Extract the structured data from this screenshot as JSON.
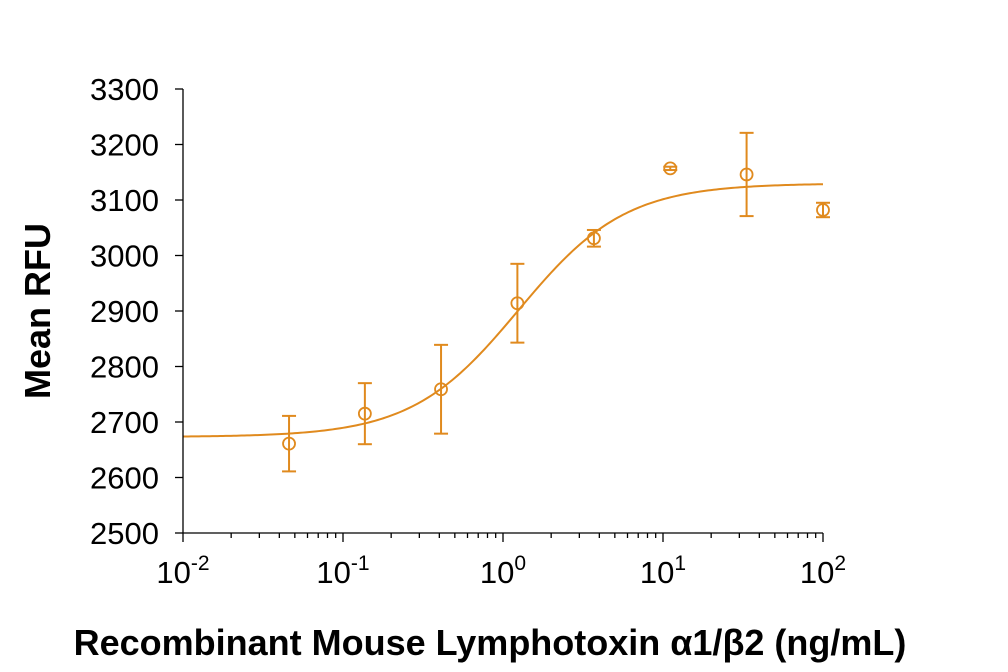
{
  "chart_data": {
    "type": "scatter",
    "xlabel": "Recombinant Mouse Lymphotoxin α1/β2 (ng/mL)",
    "ylabel": "Mean RFU",
    "x_scale": "log",
    "xlim": [
      0.01,
      100
    ],
    "ylim": [
      2500,
      3300
    ],
    "y_ticks": [
      2500,
      2600,
      2700,
      2800,
      2900,
      3000,
      3100,
      3200,
      3300
    ],
    "x_ticks": [
      {
        "base": "10",
        "exp": "-2",
        "value": 0.01
      },
      {
        "base": "10",
        "exp": "-1",
        "value": 0.1
      },
      {
        "base": "10",
        "exp": "0",
        "value": 1
      },
      {
        "base": "10",
        "exp": "1",
        "value": 10
      },
      {
        "base": "10",
        "exp": "2",
        "value": 100
      }
    ],
    "series": [
      {
        "color": "#E08A1E",
        "marker": "circle-open",
        "points": [
          {
            "x": 0.046,
            "y": 2661,
            "err": 50
          },
          {
            "x": 0.137,
            "y": 2715,
            "err": 55
          },
          {
            "x": 0.41,
            "y": 2759,
            "err": 80
          },
          {
            "x": 1.23,
            "y": 2914,
            "err": 71
          },
          {
            "x": 3.7,
            "y": 3031,
            "err": 15
          },
          {
            "x": 11.1,
            "y": 3157,
            "err": 3
          },
          {
            "x": 33.3,
            "y": 3146,
            "err": 75
          },
          {
            "x": 100,
            "y": 3082,
            "err": 13
          }
        ],
        "fit": {
          "model": "4PL",
          "bottom": 2673,
          "top": 3130,
          "ec50": 1.25,
          "hill": 1.3
        }
      }
    ]
  }
}
